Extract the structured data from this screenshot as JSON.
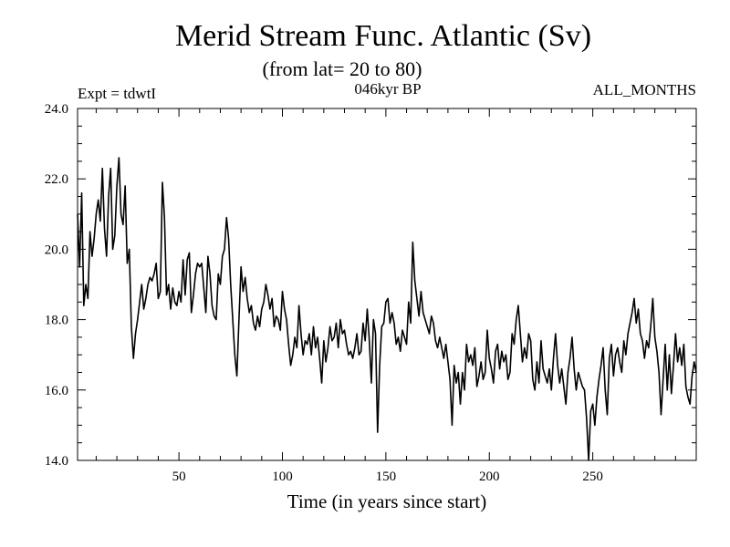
{
  "chart_data": {
    "type": "line",
    "title": "Merid Stream Func. Atlantic (Sv)",
    "subtitle": "(from lat= 20 to 80)",
    "expt_label": "Expt = tdwtI",
    "period_label": "046kyr BP",
    "months_label": "ALL_MONTHS",
    "xlabel": "Time (in years since start)",
    "ylabel": "",
    "xlim": [
      1,
      300
    ],
    "ylim": [
      14,
      24
    ],
    "x_ticks": [
      50,
      100,
      150,
      200,
      250
    ],
    "x_tick_labels": [
      "50",
      "100",
      "150",
      "200",
      "250"
    ],
    "y_ticks": [
      14,
      16,
      18,
      20,
      22,
      24
    ],
    "y_tick_labels": [
      "14.0",
      "16.0",
      "18.0",
      "20.0",
      "22.0",
      "24.0"
    ],
    "grid": false,
    "line_color": "#000000",
    "series": [
      {
        "name": "Merid Stream Func. Atlantic",
        "x_start": 1,
        "x_step": 1,
        "values": [
          21.0,
          19.5,
          21.6,
          18.4,
          19.0,
          18.6,
          20.5,
          19.8,
          20.3,
          21.0,
          21.4,
          20.8,
          22.3,
          20.6,
          19.8,
          21.5,
          22.3,
          20.0,
          20.4,
          21.8,
          22.6,
          21.0,
          20.7,
          21.8,
          19.6,
          20.0,
          17.8,
          16.9,
          17.6,
          18.0,
          18.5,
          19.0,
          18.3,
          18.6,
          19.0,
          19.2,
          19.1,
          19.3,
          19.6,
          18.6,
          18.8,
          21.9,
          20.9,
          18.7,
          19.0,
          18.3,
          18.9,
          18.5,
          18.4,
          18.8,
          18.5,
          19.7,
          18.7,
          19.7,
          19.9,
          18.2,
          18.7,
          19.3,
          19.6,
          19.5,
          19.6,
          18.9,
          18.2,
          19.8,
          19.3,
          18.4,
          18.1,
          18.0,
          19.3,
          19.0,
          19.8,
          20.0,
          20.9,
          20.3,
          19.0,
          18.0,
          17.0,
          16.4,
          18.0,
          19.5,
          18.8,
          19.2,
          18.6,
          18.2,
          18.4,
          17.9,
          17.7,
          18.1,
          17.8,
          18.3,
          18.5,
          19.0,
          18.7,
          18.3,
          18.6,
          17.8,
          18.1,
          18.0,
          17.7,
          18.8,
          18.3,
          18.0,
          17.3,
          16.7,
          17.0,
          17.5,
          17.2,
          18.4,
          17.6,
          17.0,
          17.4,
          17.3,
          17.6,
          17.0,
          17.8,
          17.2,
          17.5,
          16.9,
          16.2,
          17.4,
          16.8,
          17.2,
          17.8,
          17.4,
          17.5,
          17.9,
          17.2,
          18.0,
          17.6,
          17.7,
          17.3,
          17.0,
          17.1,
          16.9,
          17.2,
          17.6,
          17.0,
          17.1,
          17.9,
          17.4,
          18.3,
          17.4,
          16.2,
          18.0,
          17.6,
          14.8,
          16.7,
          17.8,
          17.9,
          18.5,
          18.6,
          17.9,
          18.2,
          17.9,
          17.3,
          17.5,
          17.1,
          17.7,
          17.5,
          17.3,
          18.5,
          17.9,
          20.2,
          19.1,
          18.6,
          18.1,
          18.8,
          18.2,
          18.0,
          17.8,
          17.6,
          18.1,
          17.9,
          17.4,
          17.2,
          17.5,
          17.2,
          16.9,
          17.3,
          16.8,
          16.3,
          15.0,
          16.7,
          16.2,
          16.5,
          15.6,
          16.5,
          16.0,
          17.3,
          16.8,
          17.0,
          16.7,
          17.2,
          16.1,
          16.4,
          16.8,
          16.3,
          16.5,
          17.7,
          16.9,
          16.6,
          16.2,
          17.1,
          17.3,
          16.6,
          17.1,
          16.8,
          17.0,
          16.3,
          16.5,
          17.6,
          17.3,
          18.0,
          18.4,
          17.6,
          16.8,
          17.2,
          16.9,
          17.6,
          17.4,
          16.3,
          16.0,
          16.8,
          16.2,
          17.4,
          16.6,
          16.4,
          16.2,
          16.6,
          16.0,
          16.9,
          17.6,
          16.7,
          16.2,
          16.6,
          16.1,
          15.6,
          16.5,
          16.9,
          17.5,
          16.6,
          16.0,
          16.5,
          16.3,
          16.1,
          16.0,
          15.2,
          14.0,
          15.4,
          15.6,
          15.0,
          15.8,
          16.3,
          16.7,
          17.2,
          16.0,
          15.3,
          16.9,
          17.3,
          16.4,
          17.0,
          17.2,
          16.8,
          16.5,
          17.4,
          17.0,
          17.6,
          17.9,
          18.2,
          18.6,
          17.9,
          18.3,
          17.6,
          17.4,
          16.9,
          17.4,
          17.2,
          17.8,
          18.6,
          17.5,
          17.1,
          16.5,
          15.3,
          16.3,
          17.3,
          16.0,
          17.0,
          15.9,
          16.7,
          17.6,
          16.8,
          17.2,
          16.7,
          17.3,
          16.1,
          15.8,
          15.6,
          16.4,
          16.8,
          16.5
        ]
      }
    ]
  }
}
